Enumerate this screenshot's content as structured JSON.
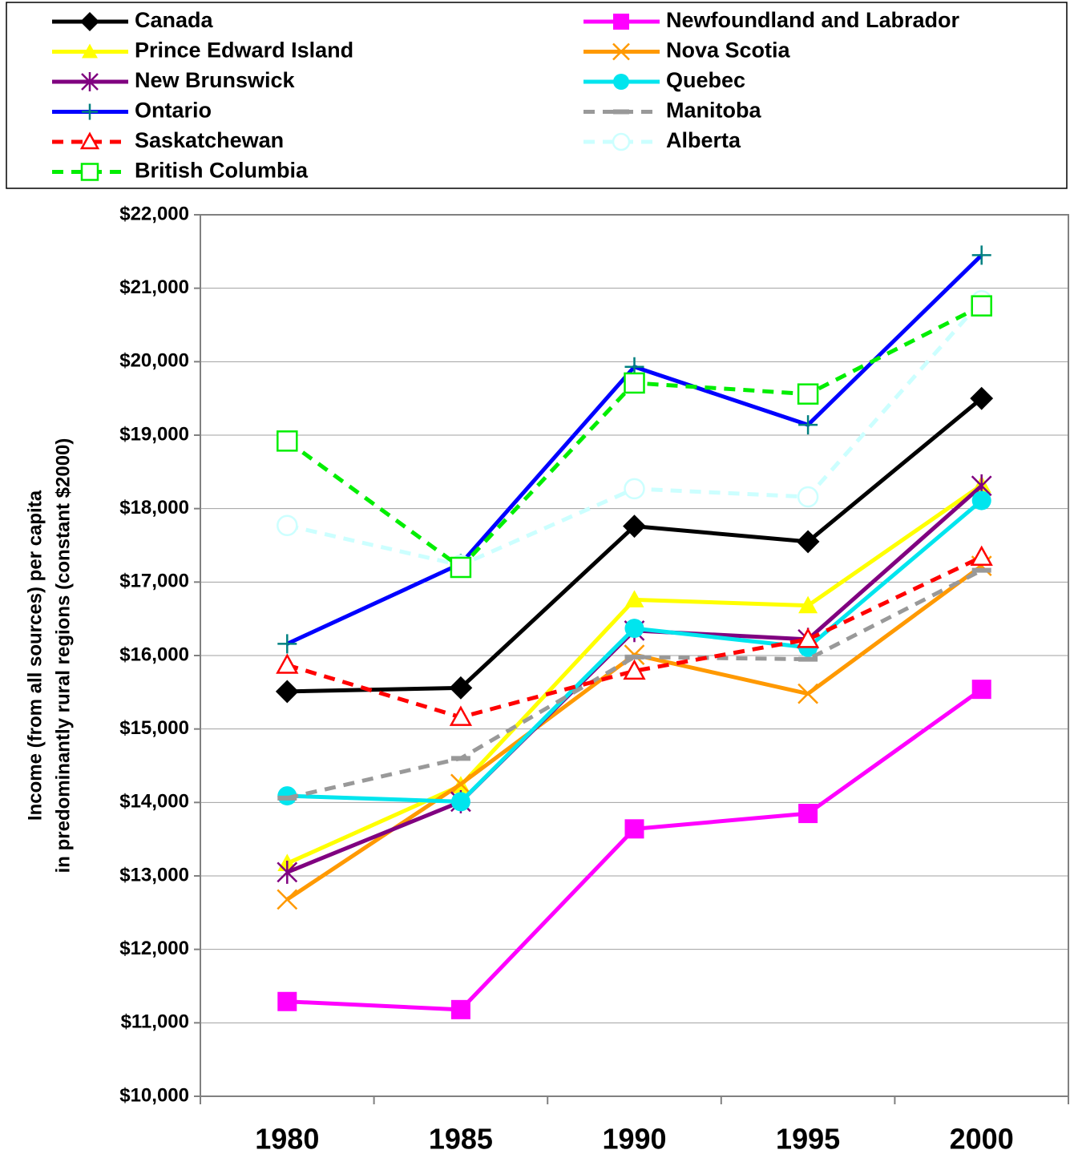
{
  "chart_data": {
    "type": "line",
    "y_label": [
      "Income (from all sources) per capita",
      "in predominantly rural regions (constant $2000)"
    ],
    "categories": [
      "1980",
      "1985",
      "1990",
      "1995",
      "2000"
    ],
    "ylim": [
      10000,
      22000
    ],
    "yticks": [
      {
        "value": 10000,
        "label": "$10,000"
      },
      {
        "value": 11000,
        "label": "$11,000"
      },
      {
        "value": 12000,
        "label": "$12,000"
      },
      {
        "value": 13000,
        "label": "$13,000"
      },
      {
        "value": 14000,
        "label": "$14,000"
      },
      {
        "value": 15000,
        "label": "$15,000"
      },
      {
        "value": 16000,
        "label": "$16,000"
      },
      {
        "value": 17000,
        "label": "$17,000"
      },
      {
        "value": 18000,
        "label": "$18,000"
      },
      {
        "value": 19000,
        "label": "$19,000"
      },
      {
        "value": 20000,
        "label": "$20,000"
      },
      {
        "value": 21000,
        "label": "$21,000"
      },
      {
        "value": 22000,
        "label": "$22,000"
      }
    ],
    "grid": true,
    "legend": "top",
    "series": [
      {
        "name": "Canada",
        "color": "#000000",
        "marker": "diamond",
        "values": [
          15510,
          15560,
          17760,
          17550,
          19500
        ]
      },
      {
        "name": "Newfoundland and Labrador",
        "color": "#ff00ff",
        "marker": "square",
        "values": [
          11290,
          11180,
          13640,
          13850,
          15540
        ]
      },
      {
        "name": "Prince Edward Island",
        "color": "#ffff00",
        "marker": "triangle",
        "values": [
          13170,
          14230,
          16760,
          16680,
          18320
        ]
      },
      {
        "name": "Nova Scotia",
        "color": "#ff9900",
        "marker": "x",
        "values": [
          12680,
          14250,
          16010,
          15480,
          17220
        ]
      },
      {
        "name": "New Brunswick",
        "color": "#800080",
        "marker": "asterisk",
        "values": [
          13050,
          14010,
          16340,
          16220,
          18310
        ]
      },
      {
        "name": "Quebec",
        "color": "#00e5ee",
        "marker": "circle",
        "values": [
          14090,
          14010,
          16370,
          16110,
          18110
        ]
      },
      {
        "name": "Ontario",
        "color": "#0000ff",
        "marker_color": "#008080",
        "marker": "plus",
        "values": [
          16160,
          17250,
          19930,
          19140,
          21450
        ]
      },
      {
        "name": "Manitoba",
        "color": "#999999",
        "marker": "dash",
        "dashed": true,
        "values": [
          14060,
          14600,
          15980,
          15950,
          17160
        ]
      },
      {
        "name": "Saskatchewan",
        "color": "#ff0000",
        "marker": "triangle-open",
        "dashed": true,
        "values": [
          15870,
          15160,
          15790,
          16220,
          17340
        ]
      },
      {
        "name": "Alberta",
        "color": "#ccffff",
        "marker": "circle-open",
        "dashed": true,
        "values": [
          17770,
          17230,
          18270,
          18160,
          20830
        ]
      },
      {
        "name": "British Columbia",
        "color": "#00ee00",
        "marker": "square-open",
        "dashed": true,
        "values": [
          18920,
          17200,
          19710,
          19560,
          20760
        ]
      }
    ]
  }
}
